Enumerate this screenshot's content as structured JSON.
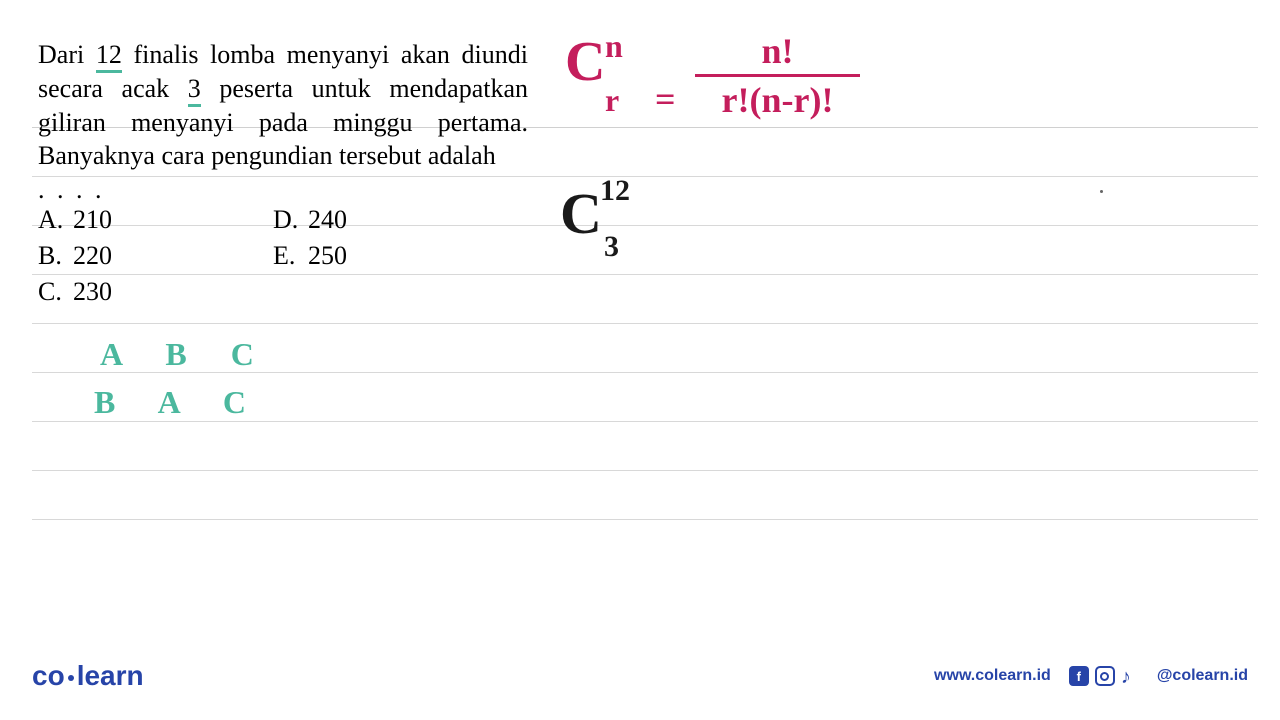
{
  "question": {
    "line1_pre": "Dari ",
    "line1_num": "12",
    "line1_mid": " finalis lomba menyanyi akan diundi secara acak ",
    "line1_num2": "3",
    "line1_post": " peserta untuk mendapatkan giliran menyanyi pada minggu pertama. Banyaknya cara pengundian tersebut adalah",
    "dots": ". . . ."
  },
  "options": {
    "a_label": "A.",
    "a_val": "210",
    "b_label": "B.",
    "b_val": "220",
    "c_label": "C.",
    "c_val": "230",
    "d_label": "D.",
    "d_val": "240",
    "e_label": "E.",
    "e_val": "250"
  },
  "formula": {
    "c": "C",
    "sup": "n",
    "sub": "r",
    "eq": "=",
    "num": "n!",
    "den": "r!(n-r)!",
    "color": "#c41e5c"
  },
  "combination": {
    "c": "C",
    "sup": "12",
    "sub": "3"
  },
  "handwriting": {
    "abc1": "A B C",
    "abc2": "B A C",
    "color": "#4bb89e"
  },
  "footer": {
    "logo_co": "co",
    "logo_learn": "learn",
    "url": "www.colearn.id",
    "handle": "@colearn.id"
  },
  "colors": {
    "primary": "#2744a8",
    "pink": "#c41e5c",
    "teal": "#4bb89e",
    "rule": "#d8d8d8"
  }
}
